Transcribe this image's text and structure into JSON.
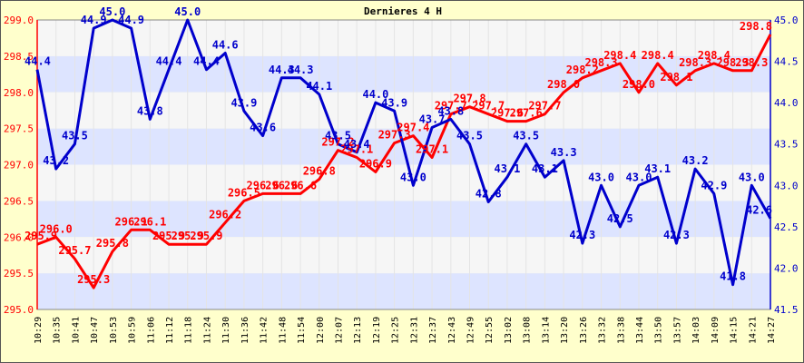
{
  "chart_data": {
    "type": "line",
    "title": "Dernieres 4 H",
    "x": [
      "10:29",
      "10:35",
      "10:41",
      "10:47",
      "10:53",
      "10:59",
      "11:06",
      "11:12",
      "11:18",
      "11:24",
      "11:30",
      "11:36",
      "11:42",
      "11:48",
      "11:54",
      "12:00",
      "12:07",
      "12:13",
      "12:19",
      "12:25",
      "12:31",
      "12:37",
      "12:43",
      "12:49",
      "12:55",
      "13:02",
      "13:08",
      "13:14",
      "13:20",
      "13:26",
      "13:32",
      "13:38",
      "13:44",
      "13:50",
      "13:57",
      "14:03",
      "14:09",
      "14:15",
      "14:21",
      "14:27"
    ],
    "series": [
      {
        "axis": "left",
        "color": "#ff0000",
        "values": [
          295.9,
          296.0,
          295.7,
          295.3,
          295.8,
          296.1,
          296.1,
          295.9,
          295.9,
          295.9,
          296.2,
          296.5,
          296.6,
          296.6,
          296.6,
          296.8,
          297.2,
          297.1,
          296.9,
          297.3,
          297.4,
          297.1,
          297.7,
          297.8,
          297.7,
          297.6,
          297.6,
          297.7,
          298.0,
          298.2,
          298.3,
          298.4,
          298.0,
          298.4,
          298.1,
          298.3,
          298.4,
          298.3,
          298.3,
          298.8
        ],
        "labels": [
          "295.9",
          "296.0",
          "295.7",
          "295.3",
          "295.8",
          "296.1",
          "296.1",
          "295.9",
          "295.9",
          "295.9",
          "296.2",
          "296.5",
          "296.6",
          "296.6",
          "296.6",
          "296.8",
          "297.2",
          "297.1",
          "296.9",
          "297.3",
          "297.4",
          "297.1",
          "297.7",
          "297.8",
          "297.7",
          "297.6",
          "297.6",
          "297.7",
          "298.0",
          "298.2",
          "298.3",
          "298.4",
          "298.0",
          "298.4",
          "298.1",
          "298.3",
          "298.4",
          "298.3",
          "298.3",
          "298.8"
        ]
      },
      {
        "axis": "right",
        "color": "#0000cc",
        "values": [
          44.4,
          43.2,
          43.5,
          44.9,
          45.0,
          44.9,
          43.8,
          44.4,
          45.0,
          44.4,
          44.6,
          43.9,
          43.6,
          44.3,
          44.3,
          44.1,
          43.5,
          43.4,
          44.0,
          43.9,
          43.0,
          43.7,
          43.8,
          43.5,
          42.8,
          43.1,
          43.5,
          43.1,
          43.3,
          42.3,
          43.0,
          42.5,
          43.0,
          43.1,
          42.3,
          43.2,
          42.9,
          41.8,
          43.0,
          42.6
        ],
        "labels": [
          "44.4",
          "43.2",
          "43.5",
          "44.9",
          "45.0",
          "44.9",
          "43.8",
          "44.4",
          "45.0",
          "44.4",
          "44.6",
          "43.9",
          "43.6",
          "44.3",
          "44.3",
          "44.1",
          "43.5",
          "43.4",
          "44.0",
          "43.9",
          "43.0",
          "43.7",
          "43.8",
          "43.5",
          "42.8",
          "43.1",
          "43.5",
          "43.1",
          "43.3",
          "42.3",
          "43.0",
          "42.5",
          "43.0",
          "43.1",
          "42.3",
          "43.2",
          "42.9",
          "41.8",
          "43.0",
          "42.6"
        ]
      }
    ],
    "y_left": {
      "range": [
        295.0,
        299.0
      ],
      "ticks": [
        "295.0",
        "295.5",
        "296.0",
        "296.5",
        "297.0",
        "297.5",
        "298.0",
        "298.5",
        "299.0"
      ],
      "color": "#ff0000"
    },
    "y_right": {
      "range": [
        41.5,
        45.0
      ],
      "ticks": [
        "41.5",
        "42.0",
        "42.5",
        "43.0",
        "43.5",
        "44.0",
        "44.5",
        "45.0"
      ],
      "color": "#0000cc"
    },
    "grid": true,
    "legend": false,
    "colors": {
      "background": "#ffffcc",
      "band_light": "#f6f6f6",
      "band_dark": "#dde4ff"
    }
  }
}
